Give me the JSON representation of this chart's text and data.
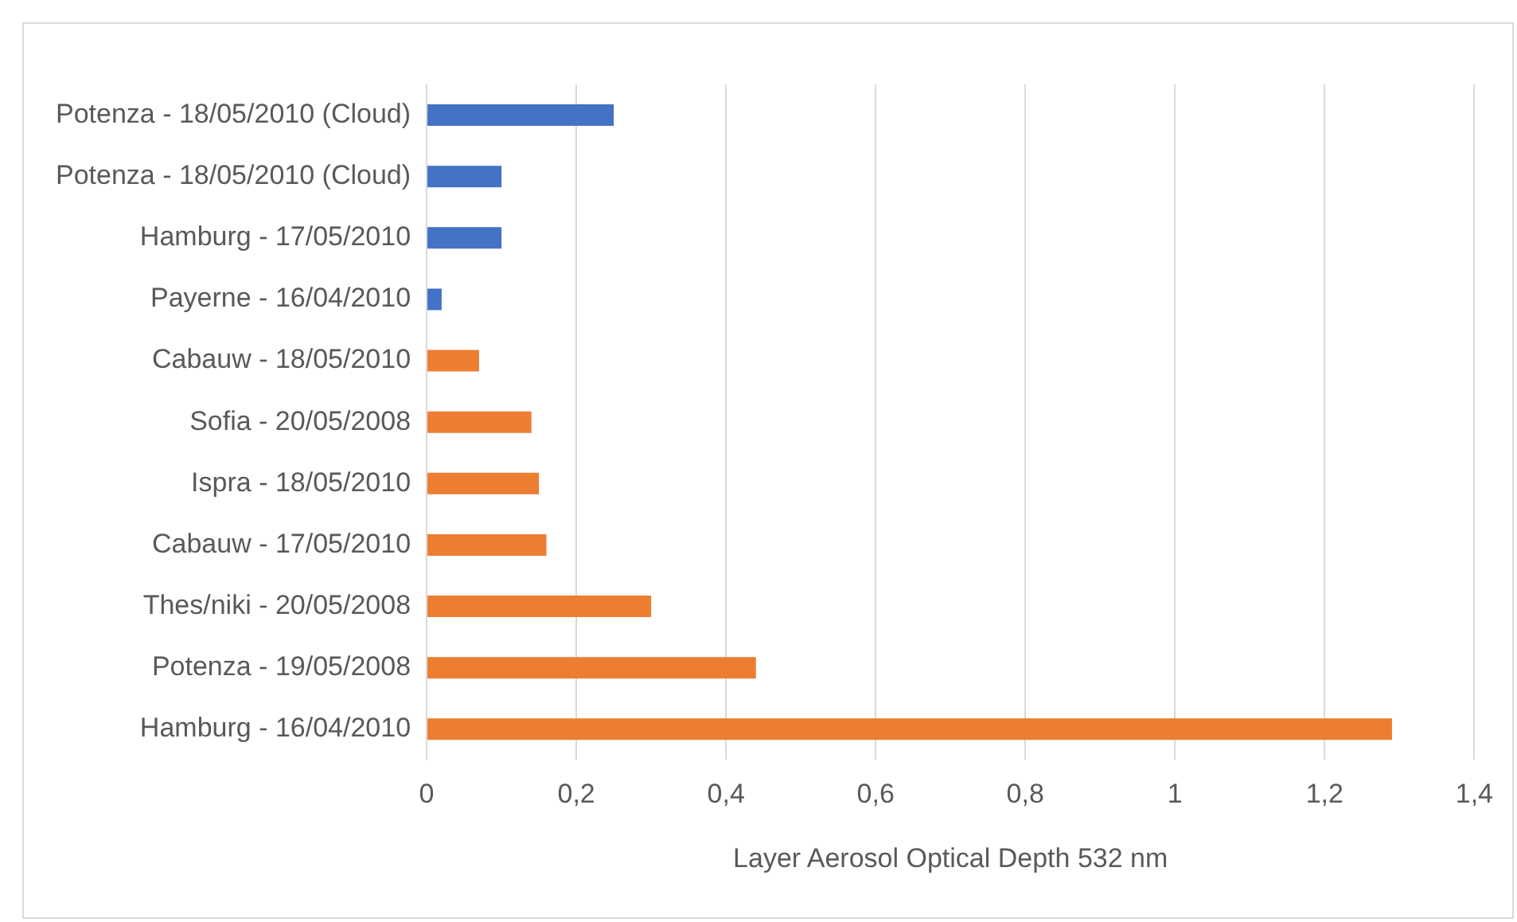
{
  "chart_data": {
    "type": "bar",
    "orientation": "horizontal",
    "xlabel": "Layer Aerosol Optical Depth 532 nm",
    "categories": [
      "Potenza - 18/05/2010 (Cloud)",
      "Potenza - 18/05/2010 (Cloud)",
      "Hamburg - 17/05/2010",
      "Payerne - 16/04/2010",
      "Cabauw - 18/05/2010",
      "Sofia - 20/05/2008",
      "Ispra - 18/05/2010",
      "Cabauw - 17/05/2010",
      "Thes/niki - 20/05/2008",
      "Potenza - 19/05/2008",
      "Hamburg - 16/04/2010"
    ],
    "values": [
      0.25,
      0.1,
      0.1,
      0.02,
      0.07,
      0.14,
      0.15,
      0.16,
      0.3,
      0.44,
      1.29
    ],
    "colors": [
      "#4472c4",
      "#4472c4",
      "#4472c4",
      "#4472c4",
      "#ed7d31",
      "#ed7d31",
      "#ed7d31",
      "#ed7d31",
      "#ed7d31",
      "#ed7d31",
      "#ed7d31"
    ],
    "xlim": [
      0,
      1.4
    ],
    "xticks": [
      0,
      {
        "value": 0.2,
        "label": "0,2"
      },
      {
        "value": 0.4,
        "label": "0,4"
      },
      {
        "value": 0.6,
        "label": "0,6"
      },
      {
        "value": 0.8,
        "label": "0,8"
      },
      1,
      {
        "value": 1.2,
        "label": "1,2"
      },
      {
        "value": 1.4,
        "label": "1,4"
      }
    ],
    "grid": "x",
    "legend": false
  }
}
